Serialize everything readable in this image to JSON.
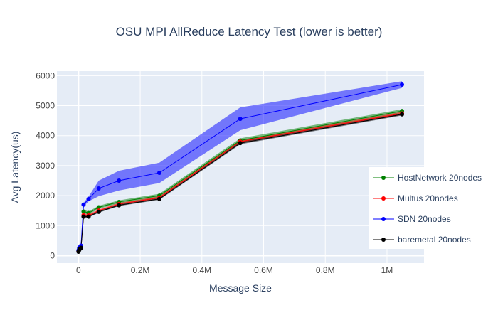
{
  "chart_data": {
    "type": "line",
    "title": "OSU MPI AllReduce Latency Test (lower is better)",
    "xlabel": "Message Size",
    "ylabel": "Avg Latency(us)",
    "xlim": [
      -70000,
      1120000
    ],
    "ylim": [
      -250,
      6150
    ],
    "xticks": [
      0,
      200000,
      400000,
      600000,
      800000,
      1000000
    ],
    "xtick_labels": [
      "0",
      "0.2M",
      "0.4M",
      "0.6M",
      "0.8M",
      "1M"
    ],
    "yticks": [
      0,
      1000,
      2000,
      3000,
      4000,
      5000,
      6000
    ],
    "ytick_labels": [
      "0",
      "1000",
      "2000",
      "3000",
      "4000",
      "5000",
      "6000"
    ],
    "x": [
      0,
      2048,
      4096,
      8192,
      16384,
      32768,
      65536,
      131072,
      262144,
      524288,
      1048576
    ],
    "series": [
      {
        "name": "HostNetwork 20nodes",
        "color": "#008000",
        "values": [
          160,
          220,
          260,
          300,
          1470,
          1420,
          1610,
          1790,
          2000,
          3840,
          4820
        ],
        "band": [
          40,
          40,
          40,
          40,
          60,
          50,
          50,
          50,
          60,
          70,
          60
        ]
      },
      {
        "name": "Multus 20nodes",
        "color": "#ff0000",
        "values": [
          150,
          200,
          240,
          280,
          1350,
          1340,
          1500,
          1720,
          1930,
          3800,
          4740
        ],
        "band": [
          30,
          30,
          30,
          30,
          50,
          40,
          40,
          40,
          40,
          50,
          50
        ]
      },
      {
        "name": "SDN 20nodes",
        "color": "#0000ff",
        "values": [
          170,
          250,
          280,
          330,
          1700,
          1890,
          2240,
          2500,
          2760,
          4560,
          5700
        ],
        "band": [
          30,
          30,
          30,
          30,
          60,
          80,
          260,
          330,
          340,
          380,
          110
        ]
      },
      {
        "name": "baremetal 20nodes",
        "color": "#000000",
        "values": [
          130,
          180,
          220,
          260,
          1300,
          1300,
          1460,
          1680,
          1890,
          3750,
          4710
        ],
        "band": [
          20,
          20,
          20,
          20,
          40,
          30,
          30,
          30,
          30,
          40,
          40
        ]
      }
    ],
    "legend_position": "right"
  }
}
